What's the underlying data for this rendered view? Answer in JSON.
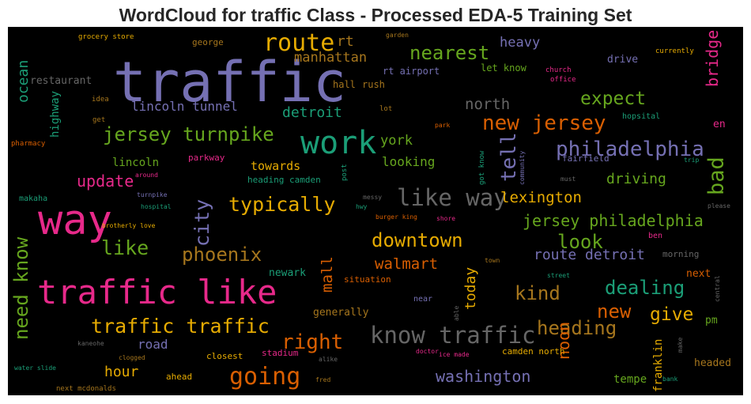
{
  "chart_data": {
    "type": "wordcloud",
    "title": "WordCloud for traffic Class - Processed EDA-5 Training Set",
    "background": "#000000",
    "colormap": [
      "#7570b3",
      "#e7298a",
      "#1b9e77",
      "#d95f02",
      "#66a61e",
      "#e6ab02",
      "#a6761d",
      "#666666"
    ],
    "words": [
      {
        "text": "traffic",
        "color": "#7570b3",
        "weight": 100
      },
      {
        "text": "way",
        "color": "#e7298a",
        "weight": 72
      },
      {
        "text": "traffic like",
        "color": "#e7298a",
        "weight": 66
      },
      {
        "text": "work",
        "color": "#1b9e77",
        "weight": 52
      },
      {
        "text": "route",
        "color": "#e6ab02",
        "weight": 44
      },
      {
        "text": "going",
        "color": "#d95f02",
        "weight": 41
      },
      {
        "text": "like way",
        "color": "#666666",
        "weight": 41
      },
      {
        "text": "know traffic",
        "color": "#666666",
        "weight": 41
      },
      {
        "text": "need know",
        "color": "#66a61e",
        "weight": 37
      },
      {
        "text": "new jersey",
        "color": "#d95f02",
        "weight": 36
      },
      {
        "text": "philadelphia",
        "color": "#7570b3",
        "weight": 36
      },
      {
        "text": "bad",
        "color": "#66a61e",
        "weight": 36
      },
      {
        "text": "city",
        "color": "#7570b3",
        "weight": 36
      },
      {
        "text": "tell",
        "color": "#7570b3",
        "weight": 36
      },
      {
        "text": "jersey turnpike",
        "color": "#66a61e",
        "weight": 35
      },
      {
        "text": "typically",
        "color": "#e6ab02",
        "weight": 35
      },
      {
        "text": "traffic traffic",
        "color": "#e6ab02",
        "weight": 35
      },
      {
        "text": "right",
        "color": "#d95f02",
        "weight": 35
      },
      {
        "text": "nearest",
        "color": "#66a61e",
        "weight": 34
      },
      {
        "text": "phoenix",
        "color": "#a6761d",
        "weight": 34
      },
      {
        "text": "like",
        "color": "#66a61e",
        "weight": 34
      },
      {
        "text": "kind",
        "color": "#a6761d",
        "weight": 34
      },
      {
        "text": "dealing",
        "color": "#1b9e77",
        "weight": 34
      },
      {
        "text": "new",
        "color": "#d95f02",
        "weight": 34
      },
      {
        "text": "heading",
        "color": "#a6761d",
        "weight": 33
      },
      {
        "text": "expect",
        "color": "#66a61e",
        "weight": 31
      },
      {
        "text": "downtown",
        "color": "#e6ab02",
        "weight": 31
      },
      {
        "text": "look",
        "color": "#66a61e",
        "weight": 31
      },
      {
        "text": "give",
        "color": "#e6ab02",
        "weight": 31
      },
      {
        "text": "noon",
        "color": "#d95f02",
        "weight": 29
      },
      {
        "text": "bridge",
        "color": "#e7298a",
        "weight": 28
      },
      {
        "text": "mall",
        "color": "#d95f02",
        "weight": 27
      },
      {
        "text": "north",
        "color": "#666666",
        "weight": 26
      },
      {
        "text": "today",
        "color": "#e6ab02",
        "weight": 26
      },
      {
        "text": "washington",
        "color": "#7570b3",
        "weight": 25
      },
      {
        "text": "jersey philadelphia",
        "color": "#66a61e",
        "weight": 25
      },
      {
        "text": "lexington",
        "color": "#e6ab02",
        "weight": 25
      },
      {
        "text": "update",
        "color": "#e7298a",
        "weight": 25
      },
      {
        "text": "walmart",
        "color": "#d95f02",
        "weight": 25
      },
      {
        "text": "ocean",
        "color": "#1b9e77",
        "weight": 24
      },
      {
        "text": "detroit",
        "color": "#1b9e77",
        "weight": 24
      },
      {
        "text": "route detroit",
        "color": "#7570b3",
        "weight": 23
      },
      {
        "text": "manhattan",
        "color": "#a6761d",
        "weight": 22
      },
      {
        "text": "hour",
        "color": "#e6ab02",
        "weight": 22
      },
      {
        "text": "driving",
        "color": "#66a61e",
        "weight": 22
      },
      {
        "text": "lincoln tunnel",
        "color": "#7570b3",
        "weight": 21
      },
      {
        "text": "heavy",
        "color": "#7570b3",
        "weight": 21
      },
      {
        "text": "york",
        "color": "#66a61e",
        "weight": 21
      },
      {
        "text": "looking",
        "color": "#66a61e",
        "weight": 21
      },
      {
        "text": "rt",
        "color": "#a6761d",
        "weight": 21
      },
      {
        "text": "road",
        "color": "#7570b3",
        "weight": 21
      },
      {
        "text": "highway",
        "color": "#1b9e77",
        "weight": 20
      },
      {
        "text": "towards",
        "color": "#e6ab02",
        "weight": 20
      },
      {
        "text": "franklin",
        "color": "#e6ab02",
        "weight": 20
      },
      {
        "text": "tempe",
        "color": "#66a61e",
        "weight": 19
      },
      {
        "text": "lincoln",
        "color": "#66a61e",
        "weight": 18
      },
      {
        "text": "restaurant",
        "color": "#666666",
        "weight": 18
      },
      {
        "text": "drive",
        "color": "#7570b3",
        "weight": 18
      },
      {
        "text": "newark",
        "color": "#1b9e77",
        "weight": 17
      },
      {
        "text": "generally",
        "color": "#a6761d",
        "weight": 17
      },
      {
        "text": "pm",
        "color": "#66a61e",
        "weight": 17
      },
      {
        "text": "headed",
        "color": "#a6761d",
        "weight": 16
      },
      {
        "text": "next",
        "color": "#d95f02",
        "weight": 16
      },
      {
        "text": "en",
        "color": "#e7298a",
        "weight": 16
      },
      {
        "text": "hall",
        "color": "#a6761d",
        "weight": 15
      },
      {
        "text": "rush",
        "color": "#a6761d",
        "weight": 15
      },
      {
        "text": "rt airport",
        "color": "#7570b3",
        "weight": 15
      },
      {
        "text": "let know",
        "color": "#66a61e",
        "weight": 15
      },
      {
        "text": "george",
        "color": "#a6761d",
        "weight": 14
      },
      {
        "text": "heading camden",
        "color": "#1b9e77",
        "weight": 14
      },
      {
        "text": "parkway",
        "color": "#e7298a",
        "weight": 14
      },
      {
        "text": "camden north",
        "color": "#e6ab02",
        "weight": 14
      },
      {
        "text": "closest",
        "color": "#e6ab02",
        "weight": 14
      },
      {
        "text": "ahead",
        "color": "#e6ab02",
        "weight": 13
      },
      {
        "text": "stadium",
        "color": "#e7298a",
        "weight": 13
      },
      {
        "text": "situation",
        "color": "#d95f02",
        "weight": 13
      },
      {
        "text": "morning",
        "color": "#666666",
        "weight": 13
      },
      {
        "text": "fairfield",
        "color": "#7570b3",
        "weight": 13
      },
      {
        "text": "makaha",
        "color": "#1b9e77",
        "weight": 12
      },
      {
        "text": "near",
        "color": "#7570b3",
        "weight": 12
      },
      {
        "text": "ben",
        "color": "#e7298a",
        "weight": 12
      },
      {
        "text": "hopsital",
        "color": "#1b9e77",
        "weight": 11
      },
      {
        "text": "lot",
        "color": "#a6761d",
        "weight": 10
      },
      {
        "text": "idea",
        "color": "#a6761d",
        "weight": 10
      },
      {
        "text": "get",
        "color": "#a6761d",
        "weight": 10
      },
      {
        "text": "pharmacy",
        "color": "#d95f02",
        "weight": 10
      },
      {
        "text": "grocery store",
        "color": "#e6ab02",
        "weight": 10
      },
      {
        "text": "garden",
        "color": "#a6761d",
        "weight": 10
      },
      {
        "text": "currently",
        "color": "#e6ab02",
        "weight": 10
      },
      {
        "text": "church",
        "color": "#e7298a",
        "weight": 10
      },
      {
        "text": "office",
        "color": "#e7298a",
        "weight": 10
      },
      {
        "text": "park",
        "color": "#d95f02",
        "weight": 10
      },
      {
        "text": "around",
        "color": "#e7298a",
        "weight": 10
      },
      {
        "text": "turnpike",
        "color": "#7570b3",
        "weight": 10
      },
      {
        "text": "hospital",
        "color": "#1b9e77",
        "weight": 10
      },
      {
        "text": "brotherly love",
        "color": "#e6ab02",
        "weight": 10
      },
      {
        "text": "messy",
        "color": "#666666",
        "weight": 10
      },
      {
        "text": "hwy",
        "color": "#1b9e77",
        "weight": 10
      },
      {
        "text": "burger king",
        "color": "#d95f02",
        "weight": 10
      },
      {
        "text": "shore",
        "color": "#e7298a",
        "weight": 10
      },
      {
        "text": "must",
        "color": "#666666",
        "weight": 10
      },
      {
        "text": "trip",
        "color": "#1b9e77",
        "weight": 10
      },
      {
        "text": "please",
        "color": "#666666",
        "weight": 10
      },
      {
        "text": "town",
        "color": "#a6761d",
        "weight": 10
      },
      {
        "text": "street",
        "color": "#1b9e77",
        "weight": 10
      },
      {
        "text": "kaneohe",
        "color": "#666666",
        "weight": 10
      },
      {
        "text": "clogged",
        "color": "#a6761d",
        "weight": 10
      },
      {
        "text": "alike",
        "color": "#666666",
        "weight": 10
      },
      {
        "text": "doctor",
        "color": "#e7298a",
        "weight": 10
      },
      {
        "text": "ice made",
        "color": "#e7298a",
        "weight": 10
      },
      {
        "text": "water slide",
        "color": "#1b9e77",
        "weight": 10
      },
      {
        "text": "next mcdonalds",
        "color": "#a6761d",
        "weight": 10
      },
      {
        "text": "fred",
        "color": "#a6761d",
        "weight": 10
      },
      {
        "text": "bank",
        "color": "#1b9e77",
        "weight": 10
      },
      {
        "text": "make",
        "color": "#666666",
        "weight": 10
      },
      {
        "text": "central",
        "color": "#666666",
        "weight": 10
      },
      {
        "text": "post",
        "color": "#1b9e77",
        "weight": 10
      },
      {
        "text": "got know",
        "color": "#1b9e77",
        "weight": 10
      },
      {
        "text": "community",
        "color": "#7570b3",
        "weight": 10
      },
      {
        "text": "able",
        "color": "#666666",
        "weight": 10
      }
    ]
  }
}
